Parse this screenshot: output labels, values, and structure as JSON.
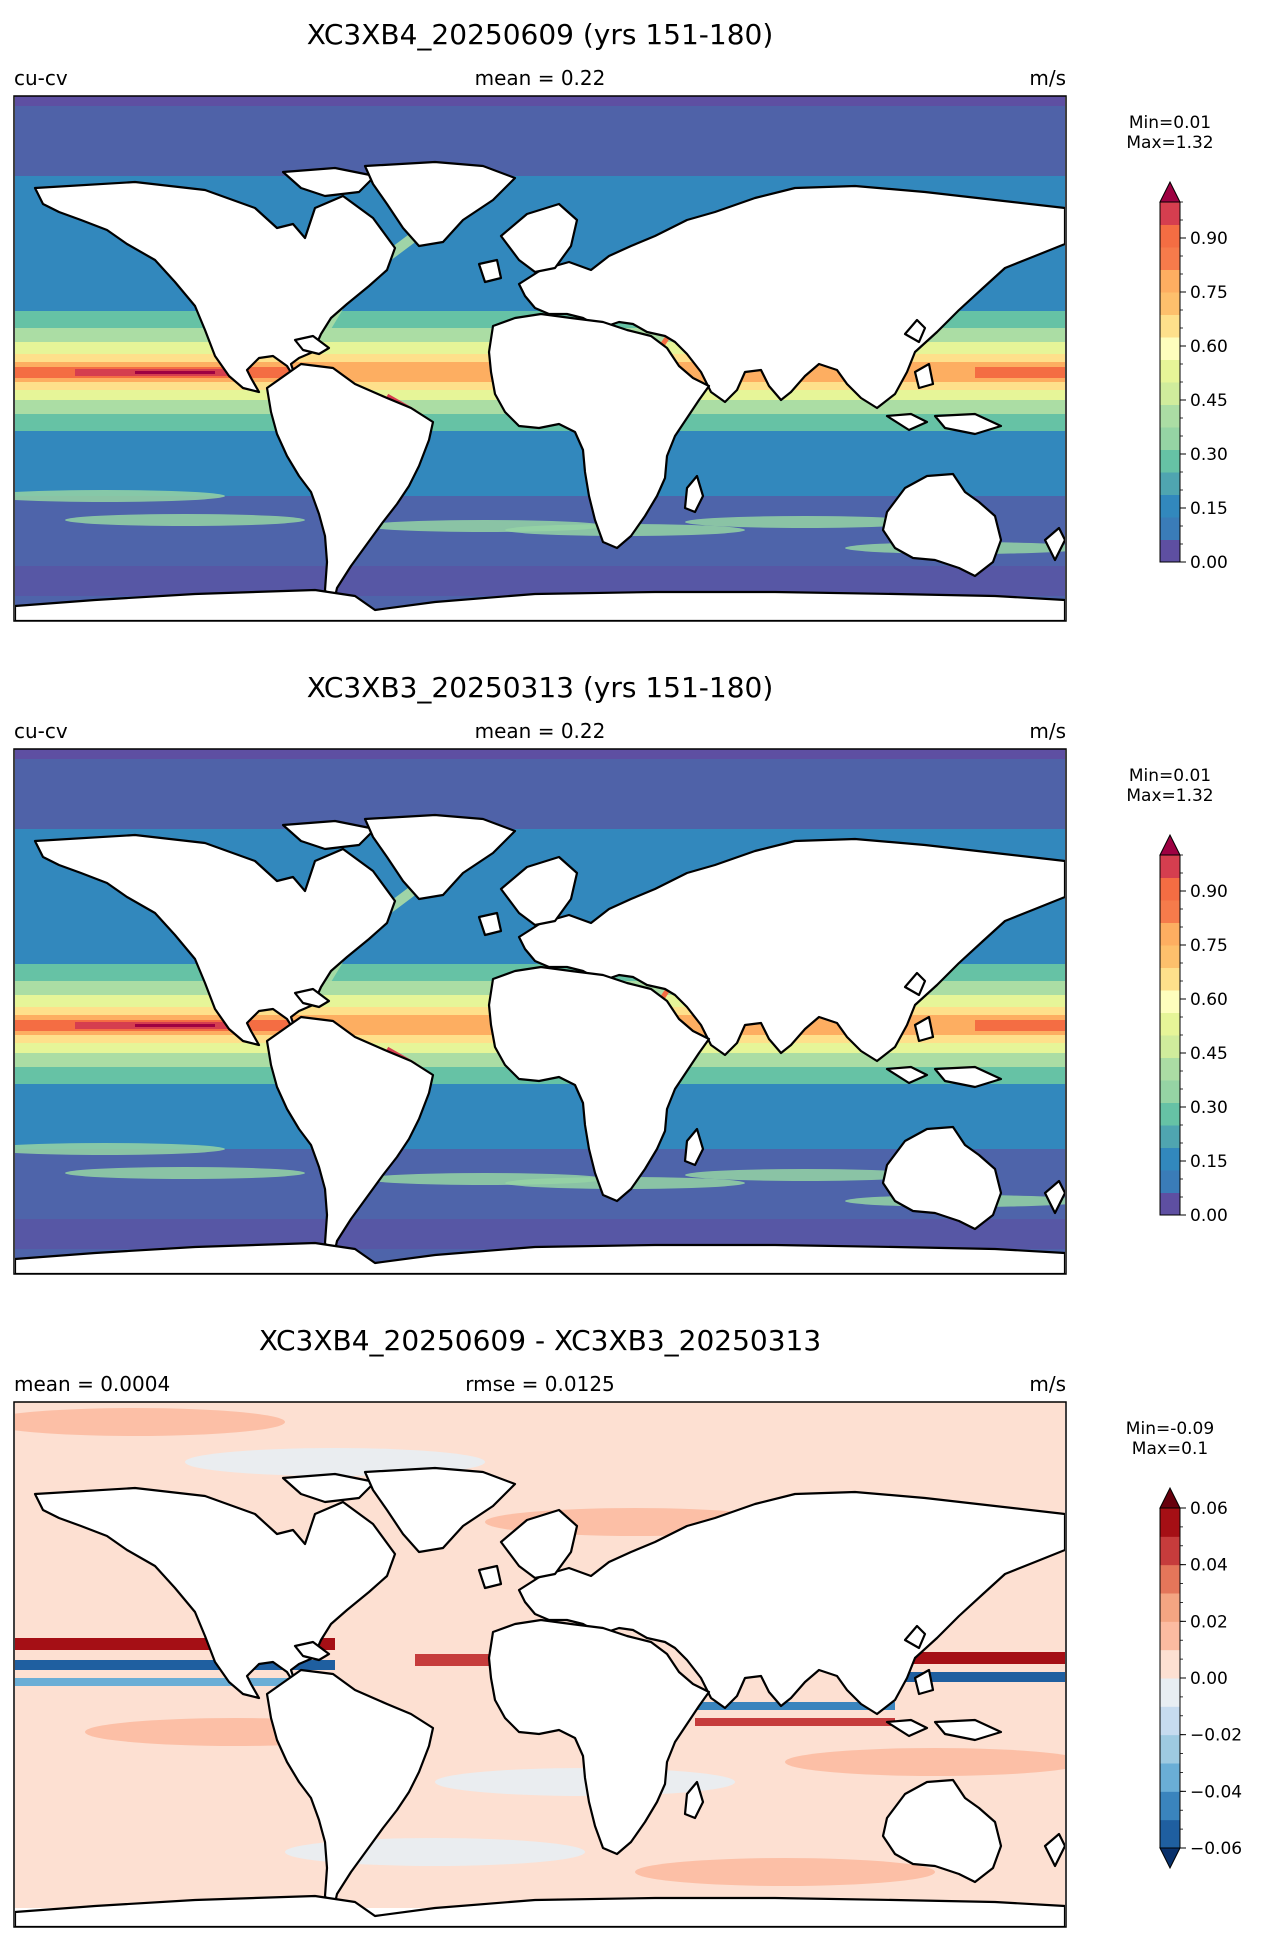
{
  "figure": {
    "panels": [
      {
        "title": "XC3XB4_20250609 (yrs 151-180)",
        "left_label": "cu-cv",
        "center_label": "mean = 0.22",
        "right_label": "m/s",
        "colorbar": {
          "minmax_line1": "Min=0.01",
          "minmax_line2": "Max=1.32",
          "colormap": "RdYlBu_r (Spectral_r)",
          "range": [
            0.0,
            1.0
          ],
          "extend": "max",
          "colors": [
            "#5e4fa2",
            "#3a7cb8",
            "#3288bd",
            "#4fa5b0",
            "#66c2a5",
            "#95d4a4",
            "#abdda4",
            "#d0ec9c",
            "#e6f598",
            "#fefebd",
            "#fee08b",
            "#fdc06c",
            "#fdae61",
            "#f67b4b",
            "#f46d43",
            "#d53e4f",
            "#9e0142"
          ],
          "ticks": [
            "0.00",
            "0.15",
            "0.30",
            "0.45",
            "0.60",
            "0.75",
            "0.90"
          ],
          "tick_values": [
            0.0,
            0.15,
            0.3,
            0.45,
            0.6,
            0.75,
            0.9
          ]
        }
      },
      {
        "title": "XC3XB3_20250313 (yrs 151-180)",
        "left_label": "cu-cv",
        "center_label": "mean = 0.22",
        "right_label": "m/s",
        "colorbar": {
          "minmax_line1": "Min=0.01",
          "minmax_line2": "Max=1.32",
          "colormap": "RdYlBu_r (Spectral_r)",
          "range": [
            0.0,
            1.0
          ],
          "extend": "max",
          "colors": [
            "#5e4fa2",
            "#3a7cb8",
            "#3288bd",
            "#4fa5b0",
            "#66c2a5",
            "#95d4a4",
            "#abdda4",
            "#d0ec9c",
            "#e6f598",
            "#fefebd",
            "#fee08b",
            "#fdc06c",
            "#fdae61",
            "#f67b4b",
            "#f46d43",
            "#d53e4f",
            "#9e0142"
          ],
          "ticks": [
            "0.00",
            "0.15",
            "0.30",
            "0.45",
            "0.60",
            "0.75",
            "0.90"
          ],
          "tick_values": [
            0.0,
            0.15,
            0.3,
            0.45,
            0.6,
            0.75,
            0.9
          ]
        }
      },
      {
        "title": "XC3XB4_20250609 - XC3XB3_20250313",
        "left_label": "mean = 0.0004",
        "center_label": "rmse = 0.0125",
        "right_label": "m/s",
        "colorbar": {
          "minmax_line1": "Min=-0.09",
          "minmax_line2": "Max=0.1",
          "colormap": "RdBu_r",
          "range": [
            -0.06,
            0.06
          ],
          "extend": "both",
          "colors": [
            "#08306b",
            "#1f5fa0",
            "#3a84bd",
            "#6aaed6",
            "#9ecae1",
            "#c6dbef",
            "#e8eef3",
            "#fde0d2",
            "#fcbba1",
            "#f4a582",
            "#e4765a",
            "#c63c3c",
            "#a50f15",
            "#67000d"
          ],
          "ticks": [
            "−0.06",
            "−0.04",
            "−0.02",
            "0.00",
            "0.02",
            "0.04",
            "0.06"
          ],
          "tick_values": [
            -0.06,
            -0.04,
            -0.02,
            0.0,
            0.02,
            0.04,
            0.06
          ]
        }
      }
    ]
  }
}
